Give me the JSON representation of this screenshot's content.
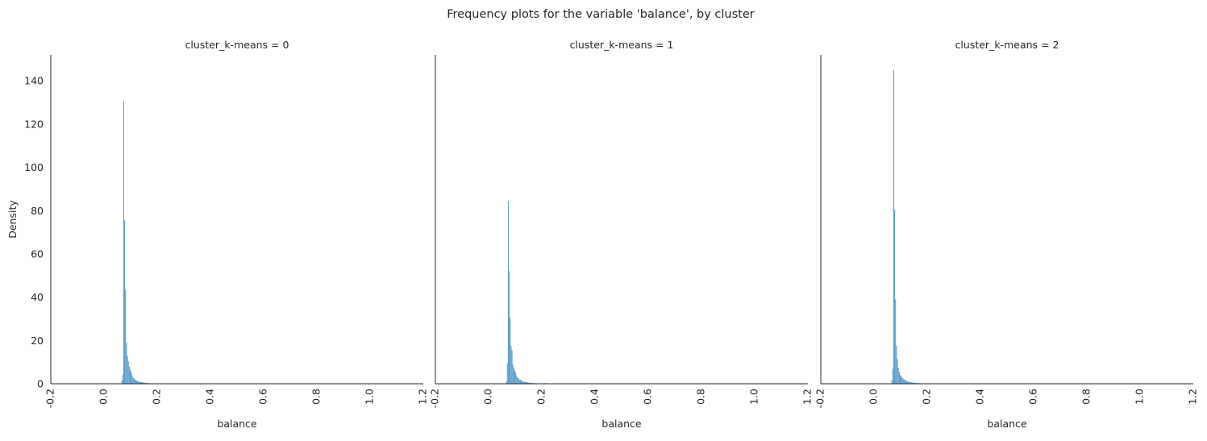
{
  "chart_data": {
    "type": "bar",
    "title": "Frequency plots for the variable 'balance', by cluster",
    "xlabel": "balance",
    "ylabel": "Density",
    "xlim": [
      -0.2,
      1.2
    ],
    "ylim": [
      0,
      152
    ],
    "xticks": [
      "-0.2",
      "0.0",
      "0.2",
      "0.4",
      "0.6",
      "0.8",
      "1.0",
      "1.2"
    ],
    "xtick_values": [
      -0.2,
      0.0,
      0.2,
      0.4,
      0.6,
      0.8,
      1.0,
      1.2
    ],
    "yticks": [
      "0",
      "20",
      "40",
      "60",
      "80",
      "100",
      "120",
      "140"
    ],
    "ytick_values": [
      0,
      20,
      40,
      60,
      80,
      100,
      120,
      140
    ],
    "grid": false,
    "bar_color": "#3b8bc2",
    "bin_width": 0.0035,
    "panels": [
      {
        "title": "cluster_k-means = 0",
        "bins": [
          [
            0.067,
            1.5
          ],
          [
            0.0705,
            4
          ],
          [
            0.074,
            130.5
          ],
          [
            0.0775,
            75.5
          ],
          [
            0.081,
            43.5
          ],
          [
            0.0845,
            19
          ],
          [
            0.088,
            13
          ],
          [
            0.0915,
            10.5
          ],
          [
            0.095,
            8
          ],
          [
            0.0985,
            6.5
          ],
          [
            0.102,
            5.5
          ],
          [
            0.1055,
            4
          ],
          [
            0.109,
            3
          ],
          [
            0.1125,
            2.5
          ],
          [
            0.116,
            2
          ],
          [
            0.1195,
            1.8
          ],
          [
            0.123,
            1.5
          ],
          [
            0.1265,
            1.3
          ],
          [
            0.13,
            1.1
          ],
          [
            0.1335,
            1
          ],
          [
            0.137,
            0.9
          ],
          [
            0.1405,
            0.8
          ],
          [
            0.144,
            0.7
          ],
          [
            0.1475,
            0.6
          ],
          [
            0.151,
            0.5
          ],
          [
            0.1545,
            0.5
          ],
          [
            0.158,
            0.4
          ],
          [
            0.1615,
            0.4
          ],
          [
            0.165,
            0.3
          ],
          [
            0.1685,
            0.3
          ],
          [
            0.172,
            0.3
          ],
          [
            0.1755,
            0.2
          ],
          [
            0.179,
            0.2
          ],
          [
            0.1825,
            0.2
          ],
          [
            0.186,
            0.2
          ],
          [
            0.1895,
            0.1
          ]
        ]
      },
      {
        "title": "cluster_k-means = 1",
        "bins": [
          [
            0.067,
            1
          ],
          [
            0.0705,
            9.5
          ],
          [
            0.074,
            84.5
          ],
          [
            0.0775,
            52
          ],
          [
            0.081,
            30.5
          ],
          [
            0.0845,
            17.5
          ],
          [
            0.088,
            15.5
          ],
          [
            0.0915,
            9
          ],
          [
            0.095,
            7.5
          ],
          [
            0.0985,
            6
          ],
          [
            0.102,
            5
          ],
          [
            0.1055,
            3.5
          ],
          [
            0.109,
            3
          ],
          [
            0.1125,
            2.5
          ],
          [
            0.116,
            2
          ],
          [
            0.1195,
            1.8
          ],
          [
            0.123,
            1.5
          ],
          [
            0.1265,
            1.3
          ],
          [
            0.13,
            1.1
          ],
          [
            0.1335,
            1
          ],
          [
            0.137,
            0.9
          ],
          [
            0.1405,
            0.8
          ],
          [
            0.144,
            0.7
          ],
          [
            0.1475,
            0.6
          ],
          [
            0.151,
            0.5
          ],
          [
            0.1545,
            0.5
          ],
          [
            0.158,
            0.4
          ],
          [
            0.1615,
            0.4
          ],
          [
            0.165,
            0.3
          ],
          [
            0.1685,
            0.3
          ],
          [
            0.172,
            0.3
          ],
          [
            0.1755,
            0.2
          ],
          [
            0.179,
            0.2
          ],
          [
            0.1825,
            0.2
          ],
          [
            0.186,
            0.2
          ],
          [
            0.1895,
            0.1
          ],
          [
            0.21,
            0.3
          ],
          [
            0.215,
            0.3
          ],
          [
            0.22,
            0.2
          ]
        ]
      },
      {
        "title": "cluster_k-means = 2",
        "bins": [
          [
            0.067,
            1.5
          ],
          [
            0.0705,
            7
          ],
          [
            0.074,
            145
          ],
          [
            0.0775,
            80.5
          ],
          [
            0.081,
            39
          ],
          [
            0.0845,
            17.5
          ],
          [
            0.088,
            11.5
          ],
          [
            0.0915,
            7.5
          ],
          [
            0.095,
            5.5
          ],
          [
            0.0985,
            4
          ],
          [
            0.102,
            3.5
          ],
          [
            0.1055,
            3
          ],
          [
            0.109,
            2.5
          ],
          [
            0.1125,
            2
          ],
          [
            0.116,
            1.8
          ],
          [
            0.1195,
            1.5
          ],
          [
            0.123,
            1.3
          ],
          [
            0.1265,
            1.1
          ],
          [
            0.13,
            1
          ],
          [
            0.1335,
            0.9
          ],
          [
            0.137,
            0.8
          ],
          [
            0.1405,
            0.7
          ],
          [
            0.144,
            0.6
          ],
          [
            0.1475,
            0.5
          ],
          [
            0.151,
            0.5
          ],
          [
            0.1545,
            0.4
          ],
          [
            0.158,
            0.4
          ],
          [
            0.1615,
            0.3
          ],
          [
            0.165,
            0.3
          ],
          [
            0.1685,
            0.3
          ],
          [
            0.172,
            0.2
          ],
          [
            0.1755,
            0.2
          ],
          [
            0.179,
            0.2
          ],
          [
            0.1825,
            0.2
          ],
          [
            0.186,
            0.1
          ]
        ]
      }
    ]
  }
}
